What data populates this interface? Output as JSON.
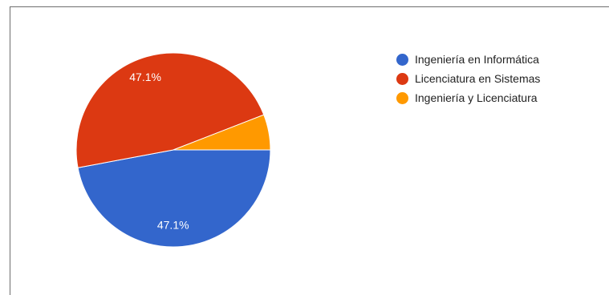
{
  "chart_data": {
    "type": "pie",
    "categories": [
      "Ingeniería en Informática",
      "Licenciatura en Sistemas",
      "Ingeniería y Licenciatura"
    ],
    "values": [
      47.1,
      47.1,
      5.9
    ],
    "slice_labels": [
      "47.1%",
      "47.1%",
      ""
    ],
    "colors": [
      "#3366cc",
      "#dc3912",
      "#ff9900"
    ],
    "legend_position": "right"
  }
}
